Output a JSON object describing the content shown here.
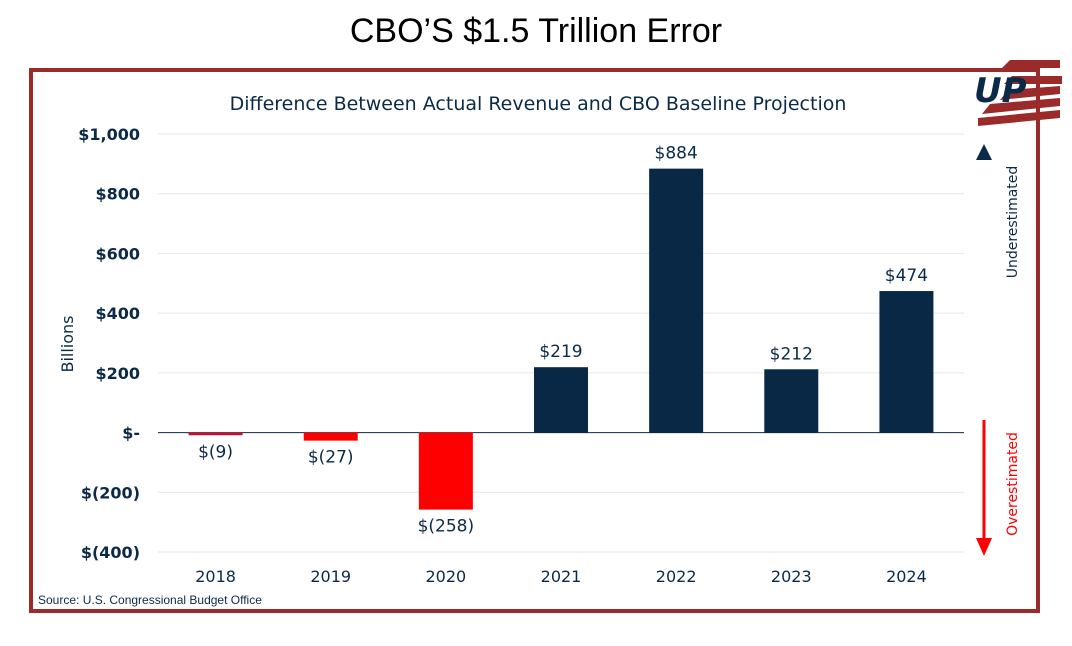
{
  "header": {
    "title": "CBO’S $1.5 Trillion Error"
  },
  "logo": {
    "text": "UP"
  },
  "colors": {
    "positive": "#092845",
    "negative": "#ff0000",
    "frame": "#9b2a2a",
    "text": "#0b2a48"
  },
  "chart_data": {
    "type": "bar",
    "title": "Difference Between Actual Revenue and CBO Baseline Projection",
    "ylabel": "Billions",
    "xlabel": "",
    "categories": [
      "2018",
      "2019",
      "2020",
      "2021",
      "2022",
      "2023",
      "2024"
    ],
    "values": [
      -9,
      -27,
      -258,
      219,
      884,
      212,
      474
    ],
    "data_labels": [
      "$(9)",
      "$(27)",
      "$(258)",
      "$219",
      "$884",
      "$212",
      "$474"
    ],
    "ylim": [
      -400,
      1000
    ],
    "yticks": [
      1000,
      800,
      600,
      400,
      200,
      0,
      -200,
      -400
    ],
    "ytick_labels": [
      "$1,000",
      "$800",
      "$600",
      "$400",
      "$200",
      "$-",
      "$(200)",
      "$(400)"
    ],
    "grid": true,
    "annotations": {
      "up_arrow": "Underestimated",
      "down_arrow": "Overestimated"
    },
    "source": "Source: U.S. Congressional Budget Office"
  }
}
